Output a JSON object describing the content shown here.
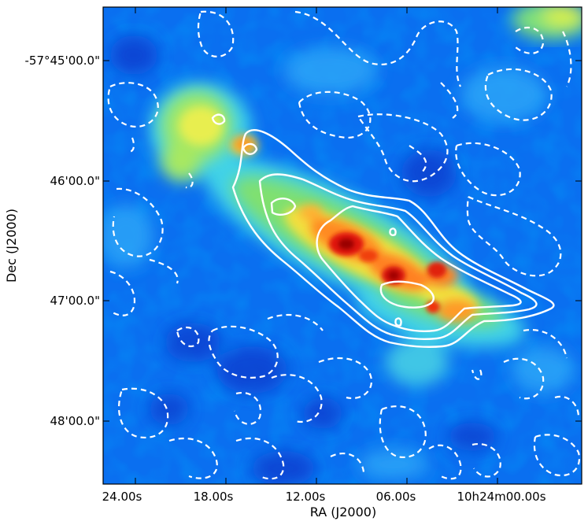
{
  "x_axis": {
    "label": "RA (J2000)",
    "ticks": [
      "24.00s",
      "18.00s",
      "12.00s",
      "06.00s",
      "10h24m00.00s"
    ]
  },
  "y_axis": {
    "label": "Dec (J2000)",
    "ticks": [
      "-57°45'00.0\"",
      "46'00.0\"",
      "47'00.0\"",
      "48'00.0\""
    ]
  },
  "colormap": "jet",
  "contours": {
    "solid_color": "#ffffff",
    "dashed_color": "#ffffff"
  }
}
